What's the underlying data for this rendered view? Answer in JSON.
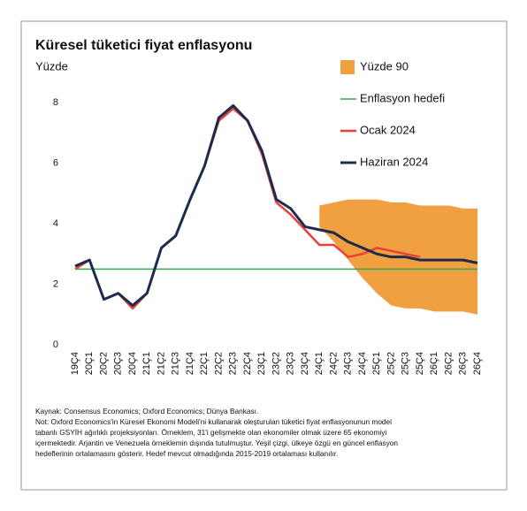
{
  "chart_data": {
    "type": "line",
    "title": "Küresel tüketici fiyat enflasyonu",
    "y_label": "Yüzde",
    "categories": [
      "19Ç4",
      "20Ç1",
      "20Ç2",
      "20Ç3",
      "20Ç4",
      "21Ç1",
      "21Ç2",
      "21Ç3",
      "21Ç4",
      "22Ç1",
      "22Ç2",
      "22Ç3",
      "22Ç4",
      "23Ç1",
      "23Ç2",
      "23Ç3",
      "23Ç4",
      "24Ç1",
      "24Ç2",
      "24Ç3",
      "24Ç4",
      "25Ç1",
      "25Ç2",
      "25Ç3",
      "25Ç4",
      "26Ç1",
      "26Ç2",
      "26Ç3",
      "26Ç4"
    ],
    "ylim": [
      0,
      8
    ],
    "yticks": [
      0,
      2,
      4,
      6,
      8
    ],
    "series": [
      {
        "name": "Yüzde 90",
        "kind": "band",
        "color": "#f0a040",
        "values": [
          null,
          null,
          null,
          null,
          null,
          null,
          null,
          null,
          null,
          null,
          null,
          null,
          null,
          null,
          null,
          null,
          null,
          4.6,
          4.7,
          4.8,
          4.8,
          4.8,
          4.7,
          4.7,
          4.6,
          4.6,
          4.6,
          4.5,
          4.5
        ],
        "lower": [
          null,
          null,
          null,
          null,
          null,
          null,
          null,
          null,
          null,
          null,
          null,
          null,
          null,
          null,
          null,
          null,
          null,
          3.9,
          3.4,
          2.8,
          2.2,
          1.7,
          1.3,
          1.2,
          1.2,
          1.1,
          1.1,
          1.1,
          1.0
        ]
      },
      {
        "name": "Enflasyon hedefi",
        "kind": "line",
        "color": "#3aa655",
        "width": 1.5,
        "values": [
          2.5,
          2.5,
          2.5,
          2.5,
          2.5,
          2.5,
          2.5,
          2.5,
          2.5,
          2.5,
          2.5,
          2.5,
          2.5,
          2.5,
          2.5,
          2.5,
          2.5,
          2.5,
          2.5,
          2.5,
          2.5,
          2.5,
          2.5,
          2.5,
          2.5,
          2.5,
          2.5,
          2.5,
          2.5
        ]
      },
      {
        "name": "Ocak 2024",
        "kind": "line",
        "color": "#e8413a",
        "width": 2.5,
        "values": [
          2.5,
          2.8,
          1.5,
          1.7,
          1.2,
          1.7,
          3.2,
          3.6,
          4.8,
          5.9,
          7.4,
          7.8,
          7.4,
          6.3,
          4.7,
          4.3,
          3.8,
          3.3,
          3.3,
          2.9,
          3.0,
          3.2,
          3.1,
          3.0,
          2.9,
          null,
          null,
          null,
          null
        ]
      },
      {
        "name": "Haziran 2024",
        "kind": "line",
        "color": "#1c2b4e",
        "width": 3,
        "values": [
          2.6,
          2.8,
          1.5,
          1.7,
          1.3,
          1.7,
          3.2,
          3.6,
          4.8,
          5.9,
          7.5,
          7.9,
          7.4,
          6.4,
          4.8,
          4.5,
          3.9,
          3.8,
          3.7,
          3.4,
          3.2,
          3.0,
          2.9,
          2.9,
          2.8,
          2.8,
          2.8,
          2.8,
          2.7
        ]
      }
    ],
    "source": "Kaynak: Consensus Economics; Oxford Economics; Dünya Bankası.",
    "note": [
      "Not: Oxford Economics'in Küresel Ekonomi Modeli'ni kullanarak oleşturulan tüketici fiyat enflasyonunun model",
      "tabanlı GSYİH ağırlıklı projeksiyonları. Örneklem, 31'i gelişmekte olan ekonomiler olmak üzere 65 ekonomiyi",
      "içermektedir. Arjantin ve Venezuela örneklemin dışında tutulmuştur. Yeşil çizgi, ülkeye özgü en güncel enflasyon",
      "hedeflerinin ortalamasını gösterir. Hedef mevcut olmadığında 2015-2019 ortalaması kullanılır."
    ]
  }
}
